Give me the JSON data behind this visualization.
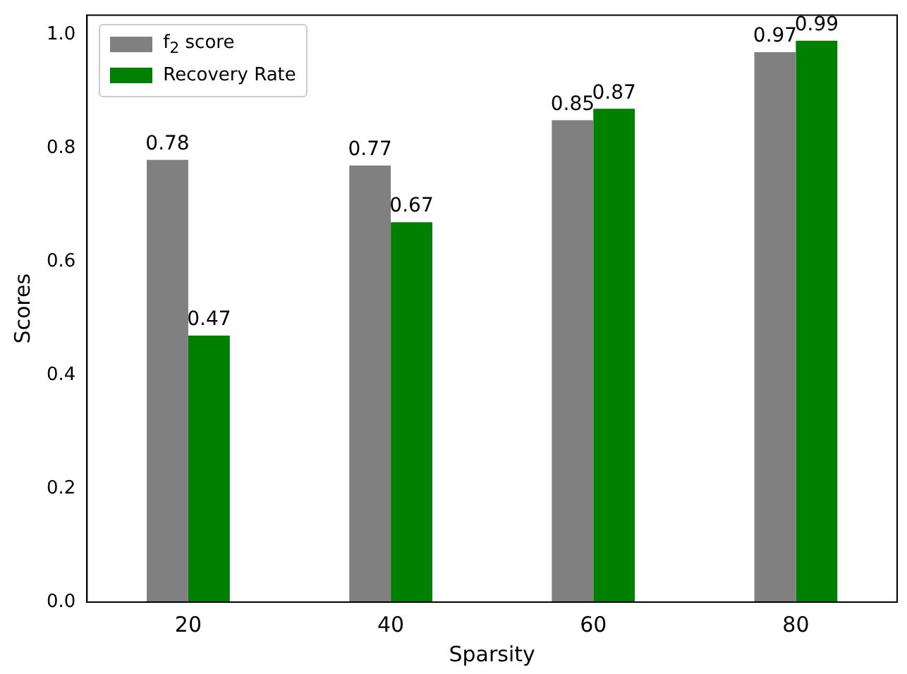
{
  "chart_data": {
    "type": "bar",
    "xlabel": "Sparsity",
    "ylabel": "Scores",
    "categories": [
      "20",
      "40",
      "60",
      "80"
    ],
    "series": [
      {
        "name": "f$_{2}$ score",
        "color": "#808080",
        "values": [
          0.78,
          0.77,
          0.85,
          0.97
        ]
      },
      {
        "name": "Recovery Rate",
        "color": "#008000",
        "values": [
          0.47,
          0.67,
          0.87,
          0.99
        ]
      }
    ],
    "ylim": [
      0,
      1.035
    ],
    "yticks": [
      {
        "value": 0,
        "label": "0.0"
      },
      {
        "value": 0.2,
        "label": "0.2"
      },
      {
        "value": 0.4,
        "label": "0.4"
      },
      {
        "value": 0.6,
        "label": "0.6"
      },
      {
        "value": 0.8,
        "label": "0.8"
      },
      {
        "value": 1.0,
        "label": "1.0"
      }
    ],
    "grid": false,
    "legend": "top left",
    "data_labels": true
  }
}
